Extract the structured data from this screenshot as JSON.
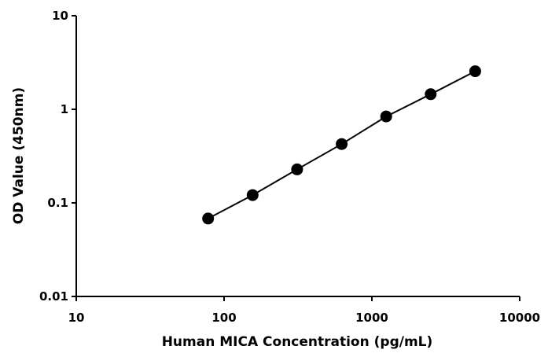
{
  "chart_data": {
    "type": "line",
    "title": "",
    "xlabel": "Human MICA Concentration (pg/mL)",
    "ylabel": "OD Value (450nm)",
    "x_scale": "log",
    "y_scale": "log",
    "xlim": [
      10,
      10000
    ],
    "ylim": [
      0.01,
      10
    ],
    "x_ticks": [
      10,
      100,
      1000,
      10000
    ],
    "x_tick_labels": [
      "10",
      "100",
      "1000",
      "10000"
    ],
    "y_ticks": [
      0.01,
      0.1,
      1,
      10
    ],
    "y_tick_labels": [
      "0.01",
      "0.1",
      "1",
      "10"
    ],
    "grid": false,
    "legend": "none",
    "series": [
      {
        "x": [
          78,
          156,
          312,
          625,
          1250,
          2500,
          5000
        ],
        "y": [
          0.068,
          0.121,
          0.228,
          0.425,
          0.838,
          1.45,
          2.55
        ]
      }
    ],
    "colors": {
      "line": "#000000",
      "marker": "#000000",
      "axis": "#000000"
    }
  }
}
